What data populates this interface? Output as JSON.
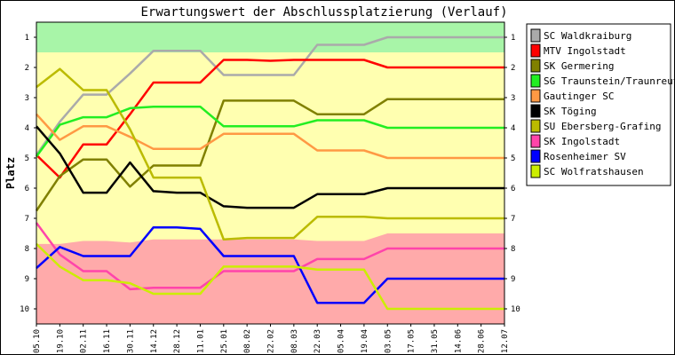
{
  "chart_data": {
    "type": "line",
    "title": "Erwartungswert der Abschlussplatzierung (Verlauf)",
    "ylabel": "Platz",
    "xlabel": "",
    "ylim": [
      10.5,
      0.5
    ],
    "y_ticks": [
      "1",
      "2",
      "3",
      "4",
      "5",
      "6",
      "7",
      "8",
      "9",
      "10"
    ],
    "categories": [
      "05.10",
      "19.10",
      "02.11",
      "16.11",
      "30.11",
      "14.12",
      "28.12",
      "11.01",
      "25.01",
      "08.02",
      "22.02",
      "08.03",
      "22.03",
      "05.04",
      "19.04",
      "03.05",
      "17.05",
      "31.05",
      "14.06",
      "28.06",
      "12.07"
    ],
    "zones": [
      {
        "name": "promotion",
        "color": "#a8f5a8",
        "from_rank": 0.5,
        "to_rank": [
          1.5,
          1.5,
          1.5,
          1.5,
          1.5,
          1.5,
          1.5,
          1.5,
          1.5,
          1.5,
          1.5,
          1.5,
          1.5,
          1.5,
          1.5,
          1.5,
          1.5,
          1.5,
          1.5,
          1.5,
          1.5
        ]
      },
      {
        "name": "middle",
        "color": "#ffffb0"
      },
      {
        "name": "relegation",
        "color": "#ffaaaa",
        "from_rank": [
          7.85,
          7.85,
          7.75,
          7.75,
          7.8,
          7.7,
          7.7,
          7.7,
          7.7,
          7.7,
          7.7,
          7.7,
          7.75,
          7.75,
          7.75,
          7.5,
          7.5,
          7.5,
          7.5,
          7.5,
          7.5
        ],
        "to_rank": 10.5
      }
    ],
    "grid": false,
    "legend_position": "right",
    "series": [
      {
        "name": "SC Waldkraiburg",
        "color": "#aaaaaa",
        "values": [
          4.9,
          3.8,
          2.9,
          2.9,
          2.2,
          1.45,
          1.45,
          1.45,
          2.25,
          2.25,
          2.25,
          2.25,
          1.25,
          1.25,
          1.25,
          1.0,
          1.0,
          1.0,
          1.0,
          1.0,
          1.0
        ]
      },
      {
        "name": "MTV Ingolstadt",
        "color": "#ff0000",
        "values": [
          4.9,
          5.65,
          4.55,
          4.55,
          3.55,
          2.5,
          2.5,
          2.5,
          1.75,
          1.75,
          1.78,
          1.75,
          1.75,
          1.75,
          1.75,
          2.0,
          2.0,
          2.0,
          2.0,
          2.0,
          2.0
        ]
      },
      {
        "name": "SK Germering",
        "color": "#808000",
        "values": [
          6.75,
          5.6,
          5.05,
          5.05,
          5.95,
          5.25,
          5.25,
          5.25,
          3.1,
          3.1,
          3.1,
          3.1,
          3.55,
          3.55,
          3.55,
          3.05,
          3.05,
          3.05,
          3.05,
          3.05,
          3.05
        ]
      },
      {
        "name": "SG Traunstein/Traunreut",
        "color": "#22ee22",
        "values": [
          4.95,
          3.9,
          3.65,
          3.65,
          3.35,
          3.3,
          3.3,
          3.3,
          3.95,
          3.95,
          3.95,
          3.95,
          3.75,
          3.75,
          3.75,
          4.0,
          4.0,
          4.0,
          4.0,
          4.0,
          4.0
        ]
      },
      {
        "name": "Gautinger SC",
        "color": "#ff9944",
        "values": [
          3.55,
          4.4,
          3.95,
          3.95,
          4.3,
          4.7,
          4.7,
          4.7,
          4.2,
          4.2,
          4.2,
          4.2,
          4.75,
          4.75,
          4.75,
          5.0,
          5.0,
          5.0,
          5.0,
          5.0,
          5.0
        ]
      },
      {
        "name": "SK Töging",
        "color": "#000000",
        "values": [
          3.95,
          4.85,
          6.15,
          6.15,
          5.15,
          6.1,
          6.15,
          6.15,
          6.6,
          6.65,
          6.65,
          6.65,
          6.2,
          6.2,
          6.2,
          6.0,
          6.0,
          6.0,
          6.0,
          6.0,
          6.0
        ]
      },
      {
        "name": "SU Ebersberg-Grafing",
        "color": "#bbbb00",
        "values": [
          2.65,
          2.05,
          2.75,
          2.75,
          4.05,
          5.65,
          5.65,
          5.65,
          7.7,
          7.65,
          7.65,
          7.65,
          6.95,
          6.95,
          6.95,
          7.0,
          7.0,
          7.0,
          7.0,
          7.0,
          7.0
        ]
      },
      {
        "name": "SK Ingolstadt",
        "color": "#ff44aa",
        "values": [
          7.15,
          8.2,
          8.75,
          8.75,
          9.35,
          9.3,
          9.3,
          9.3,
          8.75,
          8.75,
          8.75,
          8.75,
          8.35,
          8.35,
          8.35,
          8.0,
          8.0,
          8.0,
          8.0,
          8.0,
          8.0
        ]
      },
      {
        "name": "Rosenheimer SV",
        "color": "#0000ff",
        "values": [
          8.65,
          7.95,
          8.25,
          8.25,
          8.25,
          7.3,
          7.3,
          7.35,
          8.25,
          8.25,
          8.25,
          8.25,
          9.8,
          9.8,
          9.8,
          9.0,
          9.0,
          9.0,
          9.0,
          9.0,
          9.0
        ]
      },
      {
        "name": "SC Wolfratshausen",
        "color": "#ccee00",
        "values": [
          7.85,
          8.6,
          9.05,
          9.05,
          9.15,
          9.5,
          9.5,
          9.5,
          8.6,
          8.6,
          8.6,
          8.6,
          8.7,
          8.7,
          8.7,
          10.0,
          10.0,
          10.0,
          10.0,
          10.0,
          10.0
        ]
      }
    ]
  }
}
